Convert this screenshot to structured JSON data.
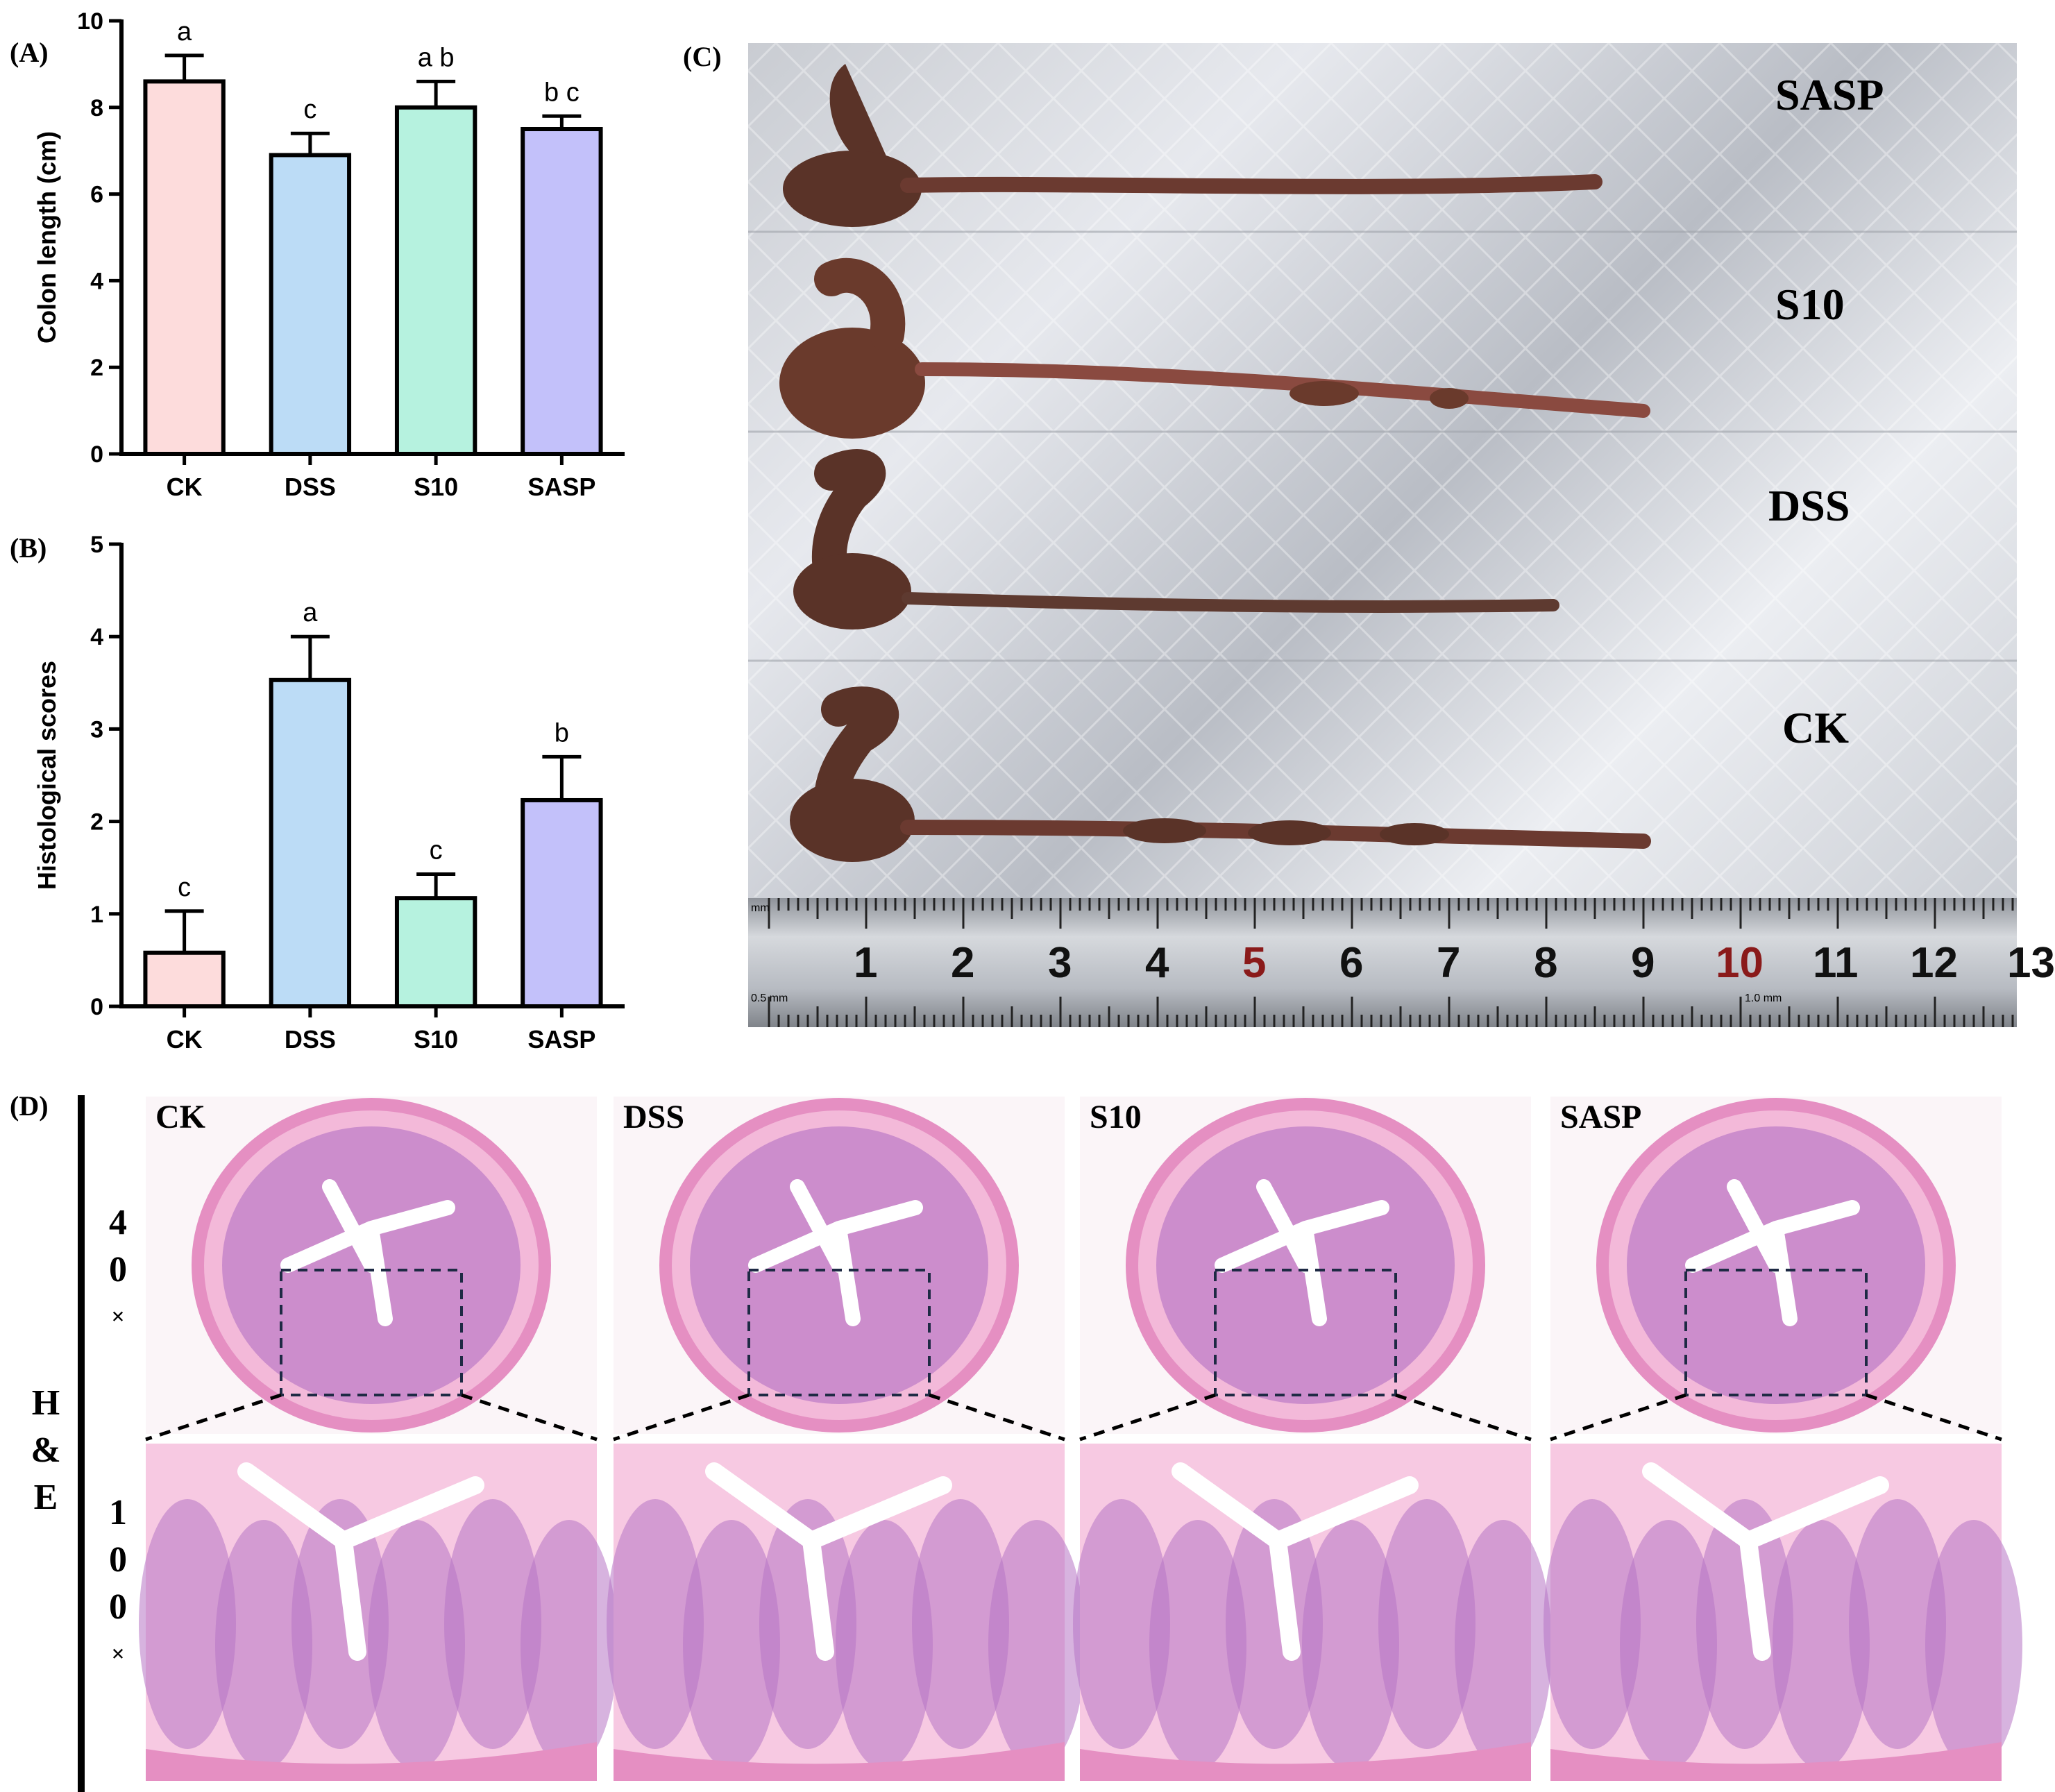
{
  "panels": {
    "a": "(A)",
    "b": "(B)",
    "c": "(C)",
    "d": "(D)"
  },
  "chart_data": [
    {
      "type": "bar",
      "categories": [
        "CK",
        "DSS",
        "S10",
        "SASP"
      ],
      "values": [
        8.6,
        6.9,
        8.0,
        7.5
      ],
      "errors": [
        0.6,
        0.5,
        0.6,
        0.3
      ],
      "significance": [
        "a",
        "c",
        "a b",
        "b c"
      ],
      "colors": [
        "#fddcdc",
        "#bcdcf6",
        "#b6f2df",
        "#c3c1fa"
      ],
      "ylabel": "Colon length (cm)",
      "ylim": [
        0,
        10
      ],
      "yticks": [
        0,
        2,
        4,
        6,
        8,
        10
      ]
    },
    {
      "type": "bar",
      "categories": [
        "CK",
        "DSS",
        "S10",
        "SASP"
      ],
      "values": [
        0.58,
        3.53,
        1.17,
        2.23
      ],
      "errors": [
        0.45,
        0.47,
        0.26,
        0.47
      ],
      "significance": [
        "c",
        "a",
        "c",
        "b"
      ],
      "colors": [
        "#fddcdc",
        "#bcdcf6",
        "#b6f2df",
        "#c3c1fa"
      ],
      "ylabel": "Histological scores",
      "ylim": [
        0,
        5
      ],
      "yticks": [
        0,
        1,
        2,
        3,
        4,
        5
      ]
    }
  ],
  "photo": {
    "labels": [
      "SASP",
      "S10",
      "DSS",
      "CK"
    ],
    "ruler_numbers": [
      "1",
      "2",
      "3",
      "4",
      "5",
      "6",
      "7",
      "8",
      "9",
      "10",
      "11",
      "12",
      "13"
    ],
    "ruler_red": [
      "5",
      "10"
    ],
    "ruler_small": [
      "mm",
      "0.5 mm",
      "1.0 mm"
    ]
  },
  "histology": {
    "groups": [
      "CK",
      "DSS",
      "S10",
      "SASP"
    ],
    "stain": [
      "H",
      "&",
      "E"
    ],
    "mag_low": [
      "4",
      "0",
      "×"
    ],
    "mag_high": [
      "1",
      "0",
      "0",
      "×"
    ]
  },
  "colors": {
    "tissue_pink": "#e58fc2",
    "tissue_purple": "#b774c4",
    "colon_brown": "#5a3328"
  }
}
